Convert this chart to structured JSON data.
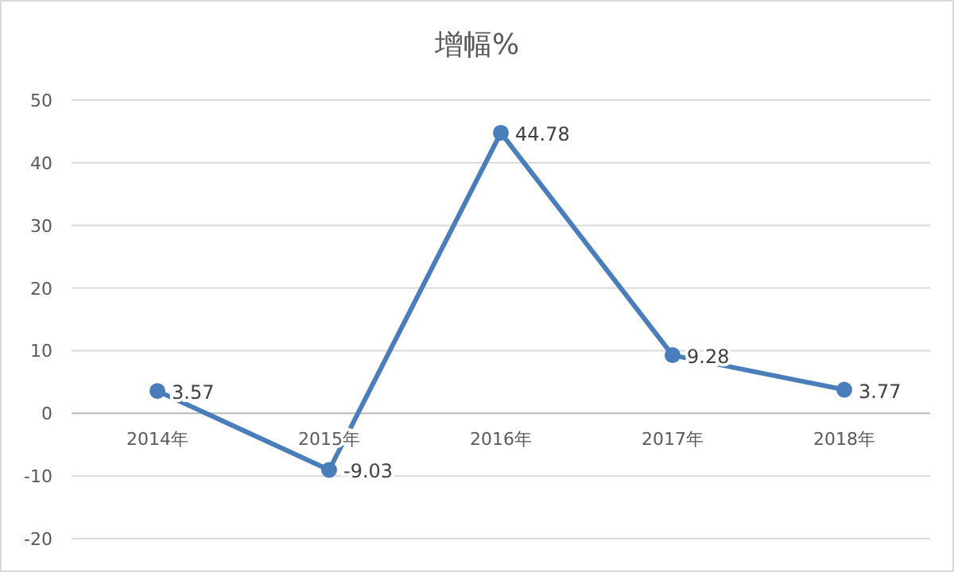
{
  "chart_data": {
    "type": "line",
    "title": "增幅%",
    "categories": [
      "2014年",
      "2015年",
      "2016年",
      "2017年",
      "2018年"
    ],
    "values": [
      3.57,
      -9.03,
      44.78,
      9.28,
      3.77
    ],
    "color": "#4a7ebb",
    "ylim": [
      -20,
      50
    ],
    "yticks": [
      -20,
      -10,
      0,
      10,
      20,
      30,
      40,
      50
    ],
    "grid": "y",
    "marker": "circle",
    "data_labels": true
  }
}
